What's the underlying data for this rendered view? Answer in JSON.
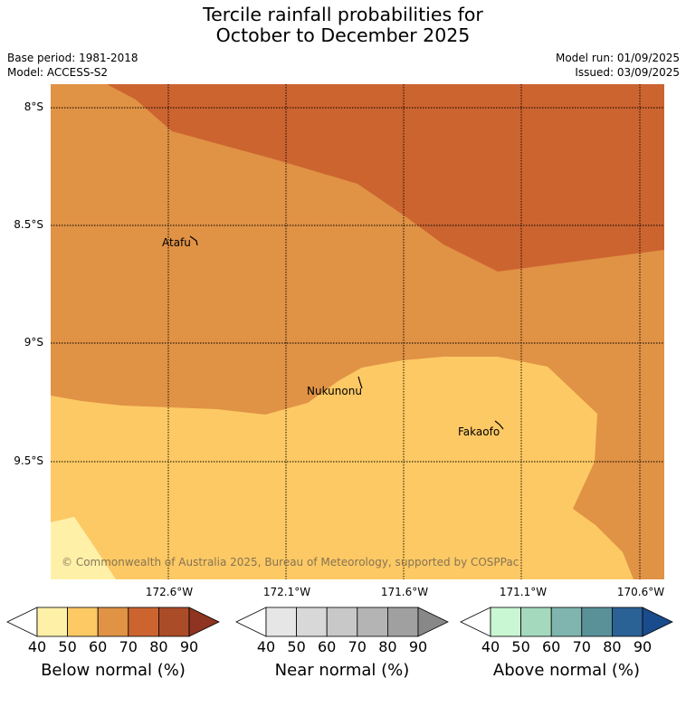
{
  "title_line1": "Tercile rainfall probabilities for",
  "title_line2": "October to December 2025",
  "meta": {
    "base_period": "Base period: 1981-2018",
    "model": "Model: ACCESS-S2",
    "model_run": "Model run: 01/09/2025",
    "issued": "Issued: 03/09/2025"
  },
  "lat_labels": [
    "8°S",
    "8.5°S",
    "9°S",
    "9.5°S"
  ],
  "lon_labels": [
    "172.6°W",
    "172.1°W",
    "171.6°W",
    "171.1°W",
    "170.6°W"
  ],
  "places": {
    "atafu": "Atafu",
    "nukunonu": "Nukunonu",
    "fakaofo": "Fakaofo"
  },
  "copyright": "© Commonwealth of Australia 2025, Bureau of Meteorology, supported by COSPPac",
  "colors": {
    "below_40": "#ffffff",
    "below_50": "#fff0a8",
    "below_60": "#fdc964",
    "below_70": "#e09245",
    "below_80": "#cc6430",
    "below_90": "#ab4c28",
    "below_over": "#8e3420",
    "near": [
      "#ffffff",
      "#e6e6e6",
      "#d8d8d8",
      "#c8c8c8",
      "#b4b4b4",
      "#a0a0a0",
      "#888888"
    ],
    "above": [
      "#ffffff",
      "#c9f7d3",
      "#a5d9bd",
      "#7fb5ae",
      "#5a9199",
      "#2b6296",
      "#1a4b8d"
    ]
  },
  "colorbars": {
    "below": {
      "label": "Below normal (%)",
      "ticks": [
        "40",
        "50",
        "60",
        "70",
        "80",
        "90"
      ]
    },
    "near": {
      "label": "Near normal (%)",
      "ticks": [
        "40",
        "50",
        "60",
        "70",
        "80",
        "90"
      ]
    },
    "above": {
      "label": "Above normal (%)",
      "ticks": [
        "40",
        "50",
        "60",
        "70",
        "80",
        "90"
      ]
    }
  }
}
